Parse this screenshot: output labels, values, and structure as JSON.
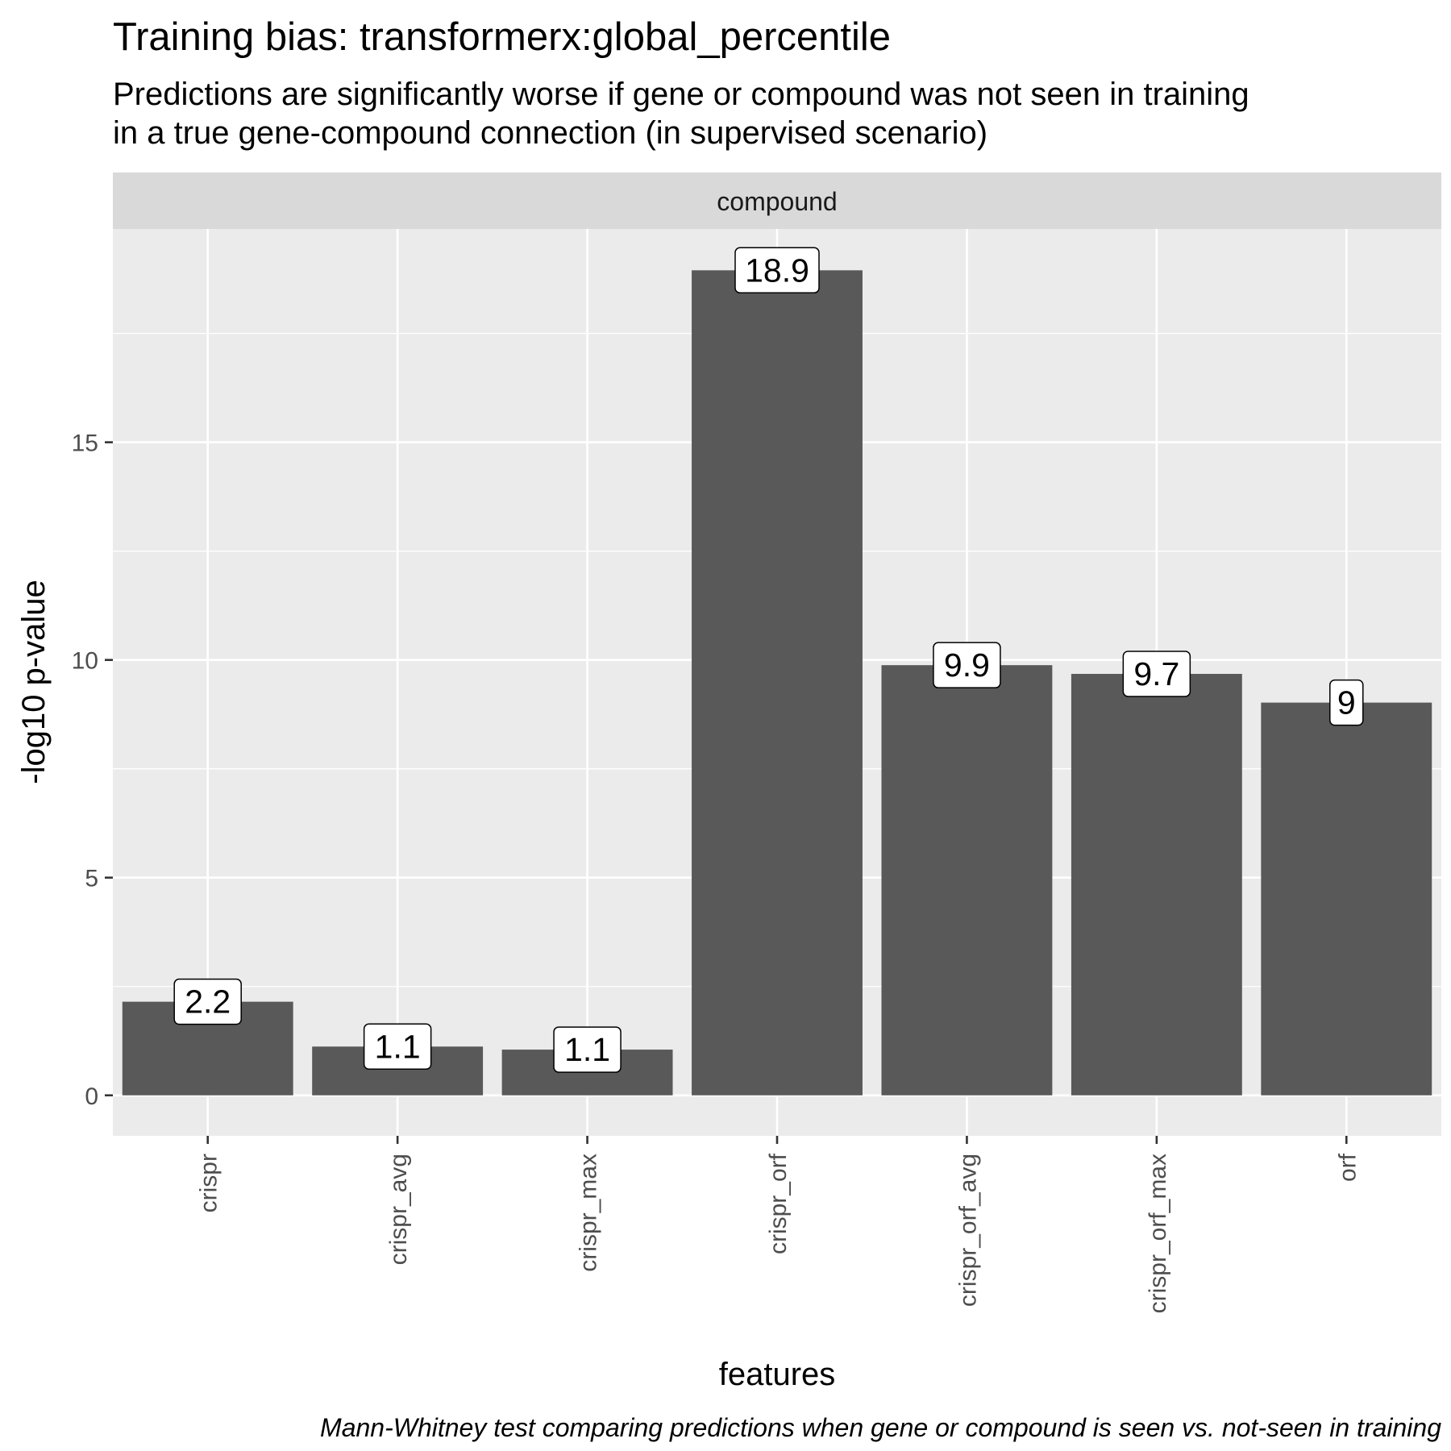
{
  "title": "Training bias: transformerx:global_percentile",
  "subtitle_lines": [
    "Predictions are significantly worse if gene or compound was not seen in training",
    "in a true gene-compound connection (in supervised scenario)"
  ],
  "caption": "Mann-Whitney test comparing predictions when gene or compound is seen vs. not-seen in training",
  "colors": {
    "bar": "#595959",
    "panel": "#ebebeb",
    "strip": "#d9d9d9",
    "grid": "#ffffff"
  },
  "chart_data": {
    "type": "bar",
    "facet": "compound",
    "xlabel": "features",
    "ylabel": "-log10 p-value",
    "categories": [
      "crispr",
      "crispr_avg",
      "crispr_max",
      "crispr_orf",
      "crispr_orf_avg",
      "crispr_orf_max",
      "orf"
    ],
    "values": [
      2.15,
      1.12,
      1.05,
      18.95,
      9.88,
      9.68,
      9.02
    ],
    "data_labels": [
      "2.2",
      "1.1",
      "1.1",
      "18.9",
      "9.9",
      "9.7",
      "9"
    ],
    "yticks": [
      0,
      5,
      10,
      15
    ],
    "ylim": [
      -0.93,
      19.9
    ],
    "grid": true
  }
}
